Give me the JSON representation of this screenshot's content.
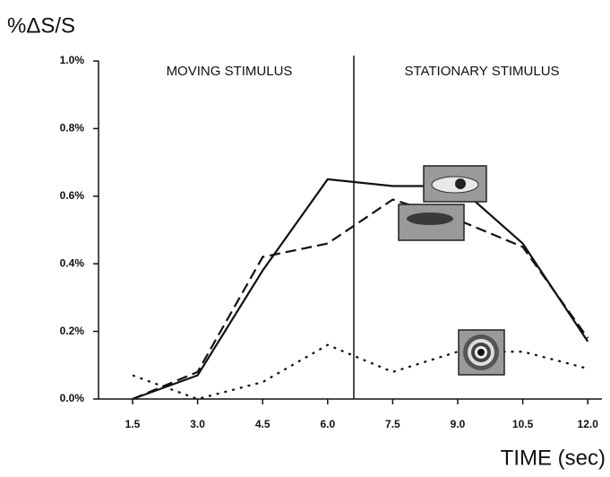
{
  "chart_data": {
    "type": "line",
    "y_label": "%ΔS/S",
    "x_label": "TIME (sec)",
    "annotations": [
      "MOVING STIMULUS",
      "STATIONARY STIMULUS"
    ],
    "categories": [
      "1.5",
      "3.0",
      "4.5",
      "6.0",
      "7.5",
      "9.0",
      "10.5",
      "12.0"
    ],
    "series": [
      {
        "color": "#111111",
        "dash": "solid",
        "values": [
          0,
          0.07,
          0.38,
          0.65,
          0.63,
          0.63,
          0.46,
          0.17
        ]
      },
      {
        "color": "#111111",
        "dash": "dashed",
        "values": [
          0,
          0.08,
          0.42,
          0.46,
          0.59,
          0.53,
          0.45,
          0.18
        ]
      },
      {
        "color": "#111111",
        "dash": "dotted",
        "values": [
          0.07,
          0,
          0.05,
          0.16,
          0.08,
          0.14,
          0.14,
          0.09
        ]
      }
    ],
    "ylim": [
      0,
      1.0
    ],
    "yticks": [
      {
        "value": 0,
        "label": "0.0%"
      },
      {
        "value": 0.2,
        "label": "0.2%"
      },
      {
        "value": 0.4,
        "label": "0.4%"
      },
      {
        "value": 0.6,
        "label": "0.6%"
      },
      {
        "value": 0.8,
        "label": "0.8%"
      },
      {
        "value": 1.0,
        "label": "1.0%"
      }
    ]
  }
}
